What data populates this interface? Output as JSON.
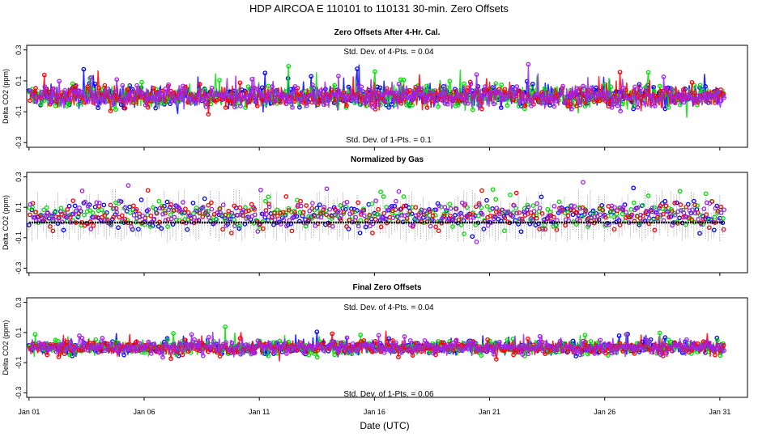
{
  "chart_data": {
    "type": "line",
    "title": "HDP   AIRCOA E   110101 to 110131   30-min. Zero Offsets",
    "xlabel": "Date (UTC)",
    "x_ticks": [
      "Jan 01",
      "Jan 06",
      "Jan 11",
      "Jan 16",
      "Jan 21",
      "Jan 26",
      "Jan 31"
    ],
    "x_tick_days": [
      1,
      6,
      11,
      16,
      21,
      26,
      31
    ],
    "xlim": [
      0.9,
      32.2
    ],
    "series_colors": [
      "#0000ff",
      "#00e000",
      "#ff0000",
      "#a020f0"
    ],
    "panels": [
      {
        "title": "Zero Offsets After 4-Hr. Cal.",
        "ylabel": "Delta CO2 (ppm)",
        "ylim": [
          -0.33,
          0.33
        ],
        "yticks": [
          "-0.3",
          "-0.1",
          "0.1",
          "0.3"
        ],
        "annotation_top": "Std. Dev. of 4-Pts. =  0.04",
        "annotation_bottom": "Std. Dev. of 1-Pts. =  0.1",
        "center": 0.0,
        "spread": 0.06
      },
      {
        "title": "Normalized by Gas",
        "ylabel": "Delta CO2 (ppm)",
        "ylim": [
          -0.33,
          0.33
        ],
        "yticks": [
          "-0.3",
          "-0.1",
          "0.1",
          "0.3"
        ],
        "annotation_top": "",
        "annotation_bottom": "",
        "center": 0.05,
        "spread": 0.07
      },
      {
        "title": "Final Zero Offsets",
        "ylabel": "Delta CO2 (ppm)",
        "ylim": [
          -0.33,
          0.33
        ],
        "yticks": [
          "-0.3",
          "-0.1",
          "0.1",
          "0.3"
        ],
        "annotation_top": "Std. Dev. of 4-Pts. =  0.04",
        "annotation_bottom": "Std. Dev. of 1-Pts. =  0.06",
        "center": 0.0,
        "spread": 0.04
      }
    ],
    "data_start_day": 1,
    "data_end_day": 31.2,
    "samples_per_day": 48
  }
}
